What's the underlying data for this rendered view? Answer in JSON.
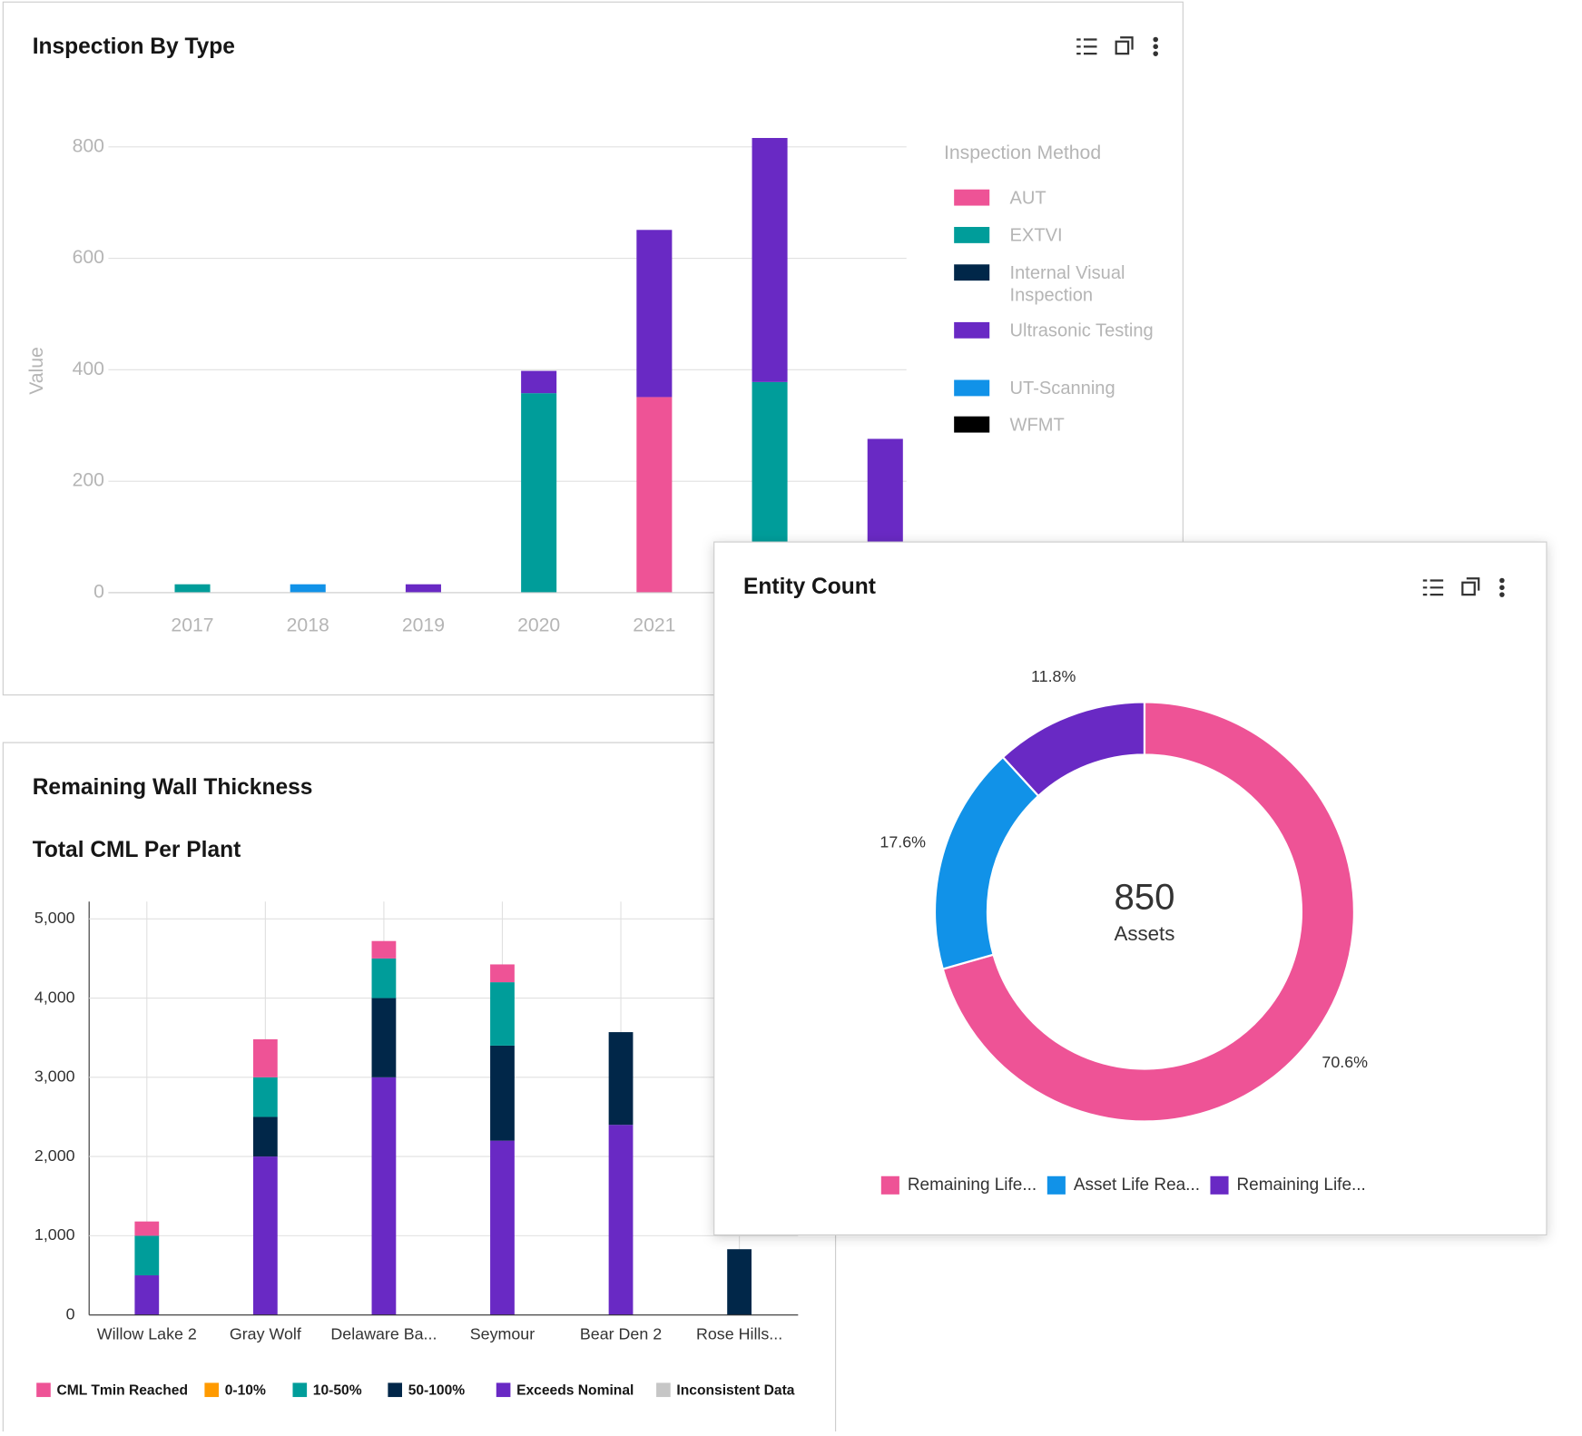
{
  "chart_data": [
    {
      "type": "bar",
      "stacked": true,
      "title": "Inspection By Type",
      "ylabel": "Value",
      "legend_title": "Inspection Method",
      "legend": "right",
      "categories": [
        "2017",
        "2018",
        "2019",
        "2020",
        "2021",
        null,
        null
      ],
      "series": [
        {
          "name": "AUT",
          "color": "#ee5396",
          "values": [
            0,
            0,
            0,
            0,
            351,
            0,
            0
          ]
        },
        {
          "name": "EXTVI",
          "color": "#009d9a",
          "values": [
            15,
            0,
            0,
            358,
            0,
            378,
            0
          ]
        },
        {
          "name": "Internal Visual Inspection",
          "color": "#012749",
          "values": [
            0,
            0,
            0,
            0,
            0,
            0,
            0
          ]
        },
        {
          "name": "Ultrasonic Testing",
          "color": "#6929c4",
          "values": [
            0,
            0,
            15,
            40,
            300,
            438,
            276
          ]
        },
        {
          "name": "UT-Scanning",
          "color": "#1192e8",
          "values": [
            0,
            15,
            0,
            0,
            0,
            0,
            0
          ]
        },
        {
          "name": "WFMT",
          "color": "#000000",
          "values": [
            0,
            0,
            0,
            0,
            0,
            0,
            0
          ]
        }
      ],
      "ylim": [
        0,
        800
      ],
      "yticks": [
        0,
        200,
        400,
        600,
        800
      ],
      "grid": true
    },
    {
      "type": "bar",
      "stacked": true,
      "title": "Remaining Wall Thickness",
      "subtitle": "Total CML Per Plant",
      "legend": "bottom",
      "categories": [
        "Willow Lake 2",
        "Gray Wolf",
        "Delaware Ba...",
        "Seymour",
        "Bear Den 2",
        "Rose Hills..."
      ],
      "series": [
        {
          "name": "CML Tmin Reached",
          "color": "#ee5396",
          "values": [
            180,
            480,
            220,
            225,
            0,
            0
          ]
        },
        {
          "name": "0-10%",
          "color": "#ff9a00",
          "values": [
            0,
            0,
            0,
            0,
            0,
            0
          ]
        },
        {
          "name": "10-50%",
          "color": "#009d9a",
          "values": [
            500,
            500,
            500,
            800,
            0,
            0
          ]
        },
        {
          "name": "50-100%",
          "color": "#012749",
          "values": [
            0,
            500,
            1000,
            1200,
            1170,
            830
          ]
        },
        {
          "name": "Exceeds Nominal",
          "color": "#6929c4",
          "values": [
            500,
            2000,
            3000,
            2200,
            2400,
            0
          ]
        },
        {
          "name": "Inconsistent Data",
          "color": "#c6c6c6",
          "values": [
            0,
            0,
            0,
            0,
            0,
            0
          ]
        }
      ],
      "ylim": [
        0,
        5000
      ],
      "yticks": [
        0,
        {
          "value": 1000,
          "label": "1,000"
        },
        {
          "value": 2000,
          "label": "2,000"
        },
        {
          "value": 3000,
          "label": "3,000"
        },
        {
          "value": 4000,
          "label": "4,000"
        },
        {
          "value": 5000,
          "label": "5,000"
        }
      ],
      "grid": true
    },
    {
      "type": "donut",
      "title": "Entity Count",
      "total": 850,
      "center_label": "Assets",
      "legend": "bottom",
      "categories": [
        "Remaining Life...",
        "Asset Life Rea...",
        "Remaining Life..."
      ],
      "values": [
        70.6,
        17.6,
        11.8
      ],
      "value_labels": [
        "70.6%",
        "17.6%",
        "11.8%"
      ],
      "colors": [
        "#ee5396",
        "#1192e8",
        "#6929c4"
      ]
    }
  ]
}
